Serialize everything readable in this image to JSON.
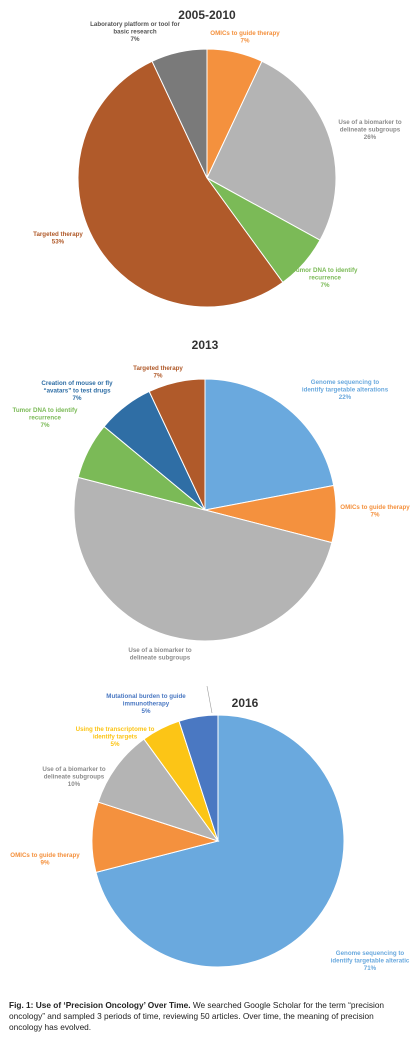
{
  "chart_data": [
    {
      "type": "pie",
      "title": "2005-2010",
      "start_angle": 0,
      "slices": [
        {
          "label": [
            "OMICs to guide therapy",
            "7%"
          ],
          "value": 7,
          "color": "#F4913E"
        },
        {
          "label": [
            "Use of a biomarker to",
            "delineate subgroups",
            "26%"
          ],
          "value": 26,
          "color": "#B4B4B4"
        },
        {
          "label": [
            "Tumor DNA to identify",
            "recurrence",
            "7%"
          ],
          "value": 7,
          "color": "#7BBA57"
        },
        {
          "label": [
            "Targeted therapy",
            "53%"
          ],
          "value": 53,
          "color": "#B05A2A"
        },
        {
          "label": [
            "Laboratory platform or tool for",
            "basic research",
            "7%"
          ],
          "value": 7,
          "color": "#7A7A7A"
        }
      ]
    },
    {
      "type": "pie",
      "title": "2013",
      "start_angle": 0,
      "slices": [
        {
          "label": [
            "Genome sequencing to",
            "identify targetable alterations",
            "22%"
          ],
          "value": 22,
          "color": "#6AA9DE"
        },
        {
          "label": [
            "OMICs to guide therapy",
            "7%"
          ],
          "value": 7,
          "color": "#F4913E"
        },
        {
          "label": [
            "Use of a biomarker to",
            "delineate subgroups"
          ],
          "value": 50,
          "color": "#B4B4B4"
        },
        {
          "label": [
            "Tumor DNA to identify",
            "recurrence",
            "7%"
          ],
          "value": 7,
          "color": "#7BBA57"
        },
        {
          "label": [
            "Creation of mouse or fly",
            "“avatars” to test drugs",
            "7%"
          ],
          "value": 7,
          "color": "#2F6EA5"
        },
        {
          "label": [
            "Targeted therapy",
            "7%"
          ],
          "value": 7,
          "color": "#B05A2A"
        }
      ]
    },
    {
      "type": "pie",
      "title": "2016",
      "start_angle": 0,
      "slices": [
        {
          "label": [
            "Genome sequencing to",
            "identify targetable alteratic",
            "71%"
          ],
          "value": 71,
          "color": "#6AA9DE"
        },
        {
          "label": [
            "OMICs to guide therapy",
            "9%"
          ],
          "value": 9,
          "color": "#F4913E"
        },
        {
          "label": [
            "Use of a biomarker to",
            "delineate subgroups",
            "10%"
          ],
          "value": 10,
          "color": "#B4B4B4"
        },
        {
          "label": [
            "Using the transcriptome to",
            "identify targets",
            "5%"
          ],
          "value": 5,
          "color": "#FCC516"
        },
        {
          "label": [
            "Mutational burden to guide",
            "immunotherapy",
            "5%"
          ],
          "value": 5,
          "color": "#4A78C2"
        }
      ]
    }
  ],
  "caption": {
    "lead": "Fig. 1: Use of ‘Precision Oncology’ Over Time.",
    "lines": [
      " We searched Google Scholar for the term “precision",
      "oncology” and sampled 3 periods of time, reviewing 50 articles. Over time, the meaning of precision",
      "oncology has evolved."
    ]
  }
}
